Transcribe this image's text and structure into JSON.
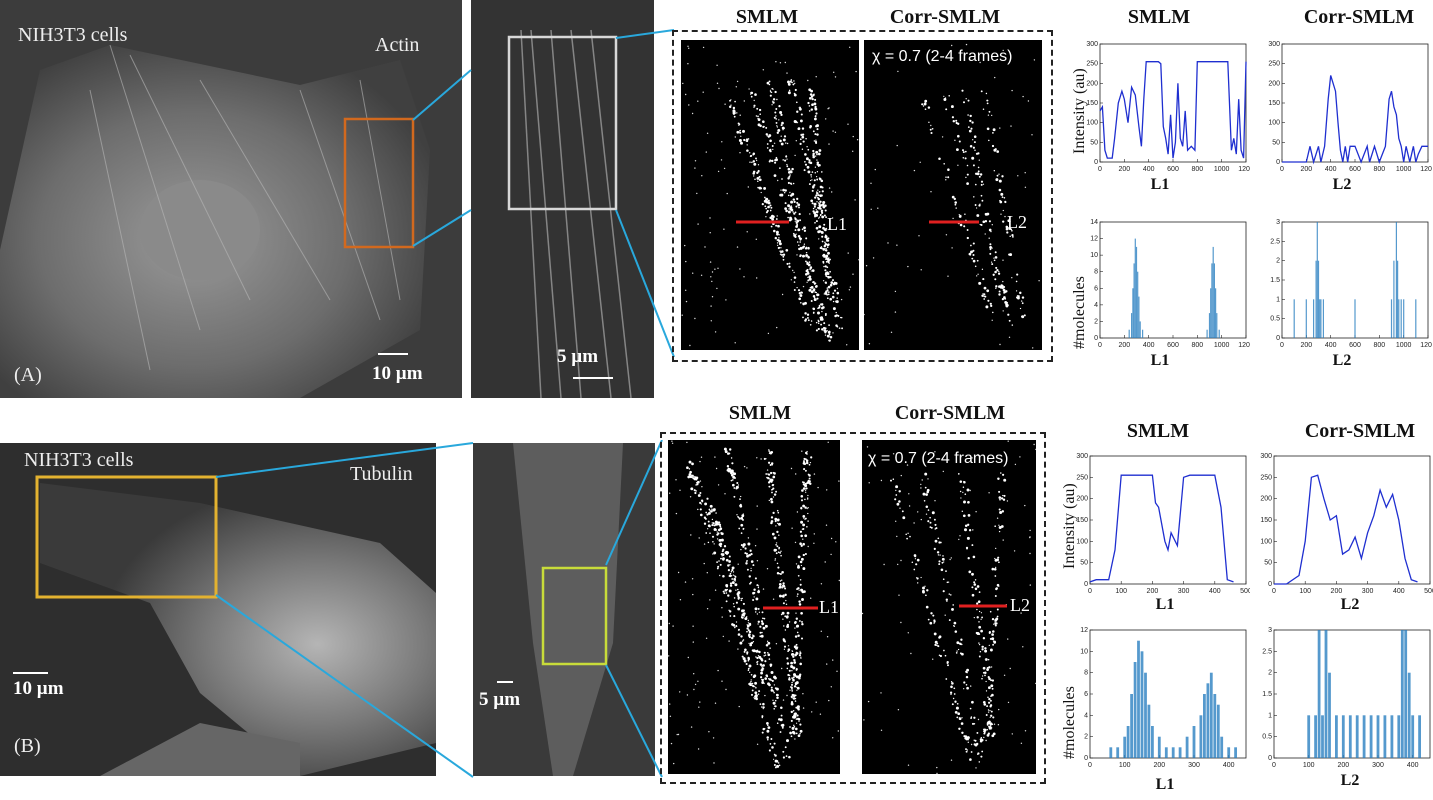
{
  "panel_a": {
    "cells_label": "NIH3T3 cells",
    "protein_label": "Actin",
    "scale_full": "10 µm",
    "scale_zoom": "5 µm",
    "panel_letter": "(A)",
    "smlm_header": "SMLM",
    "corr_header": "Corr-SMLM",
    "chi_text": "χ = 0.7 (2-4 frames)",
    "line1": "L1",
    "line2": "L2",
    "plot_smlm_header": "SMLM",
    "plot_corr_header": "Corr-SMLM",
    "intensity_ylabel": "Intensity (au)",
    "molecules_ylabel": "#molecules",
    "plot_xlabel_1": "L1",
    "plot_xlabel_2": "L2",
    "plot_xlabel_3": "L1",
    "plot_xlabel_4": "L2"
  },
  "panel_b": {
    "cells_label": "NIH3T3 cells",
    "protein_label": "Tubulin",
    "scale_full": "10 µm",
    "scale_zoom": "5 µm",
    "panel_letter": "(B)",
    "smlm_header": "SMLM",
    "corr_header": "Corr-SMLM",
    "chi_text": "χ = 0.7 (2-4 frames)",
    "line1": "L1",
    "line2": "L2",
    "plot_smlm_header": "SMLM",
    "plot_corr_header": "Corr-SMLM",
    "intensity_ylabel": "Intensity (au)",
    "molecules_ylabel": "#molecules",
    "plot_xlabel_1": "L1",
    "plot_xlabel_2": "L2",
    "plot_xlabel_3": "L1",
    "plot_xlabel_4": "L2"
  },
  "chart_data": [
    {
      "id": "A-intensity-L1",
      "type": "line",
      "xlim": [
        0,
        1200
      ],
      "ylim": [
        0,
        300
      ],
      "xticks": [
        0,
        200,
        400,
        600,
        800,
        1000,
        1200
      ],
      "yticks": [
        0,
        50,
        100,
        150,
        200,
        250,
        300
      ],
      "x": [
        0,
        20,
        40,
        60,
        80,
        100,
        120,
        150,
        180,
        200,
        230,
        260,
        290,
        320,
        340,
        360,
        380,
        400,
        420,
        450,
        480,
        500,
        520,
        540,
        560,
        580,
        600,
        620,
        640,
        660,
        680,
        700,
        720,
        750,
        780,
        800,
        820,
        850,
        880,
        900,
        950,
        1000,
        1050,
        1080,
        1100,
        1120,
        1140,
        1160,
        1180,
        1200
      ],
      "y": [
        130,
        140,
        30,
        10,
        10,
        10,
        60,
        150,
        180,
        160,
        100,
        190,
        170,
        90,
        40,
        160,
        255,
        255,
        255,
        255,
        255,
        250,
        90,
        60,
        20,
        120,
        10,
        50,
        200,
        60,
        40,
        130,
        30,
        40,
        30,
        255,
        255,
        255,
        255,
        255,
        255,
        255,
        255,
        30,
        60,
        20,
        160,
        30,
        10,
        255
      ]
    },
    {
      "id": "A-intensity-L2",
      "type": "line",
      "xlim": [
        0,
        1200
      ],
      "ylim": [
        0,
        300
      ],
      "xticks": [
        0,
        200,
        400,
        600,
        800,
        1000,
        1200
      ],
      "yticks": [
        0,
        50,
        100,
        150,
        200,
        250,
        300
      ],
      "x": [
        0,
        100,
        180,
        200,
        230,
        260,
        300,
        320,
        350,
        380,
        400,
        420,
        440,
        460,
        480,
        500,
        520,
        540,
        560,
        600,
        650,
        700,
        720,
        760,
        800,
        850,
        880,
        900,
        920,
        940,
        960,
        980,
        1000,
        1020,
        1050,
        1080,
        1100,
        1120,
        1150,
        1200
      ],
      "y": [
        0,
        0,
        0,
        0,
        40,
        0,
        40,
        0,
        40,
        160,
        220,
        200,
        180,
        100,
        30,
        0,
        40,
        0,
        40,
        40,
        0,
        40,
        0,
        40,
        0,
        40,
        160,
        180,
        140,
        120,
        60,
        40,
        0,
        40,
        0,
        40,
        0,
        20,
        40,
        40
      ]
    },
    {
      "id": "A-molecules-L1",
      "type": "bar",
      "xlim": [
        0,
        1200
      ],
      "ylim": [
        0,
        14
      ],
      "xticks": [
        0,
        200,
        400,
        600,
        800,
        1000,
        1200
      ],
      "yticks": [
        0,
        2,
        4,
        6,
        8,
        10,
        12,
        14
      ],
      "x": [
        240,
        260,
        270,
        280,
        290,
        300,
        310,
        320,
        330,
        350,
        880,
        900,
        910,
        920,
        930,
        940,
        950,
        960,
        980
      ],
      "y": [
        1,
        3,
        6,
        9,
        12,
        11,
        8,
        5,
        2,
        1,
        1,
        3,
        6,
        9,
        11,
        9,
        6,
        3,
        1
      ]
    },
    {
      "id": "A-molecules-L2",
      "type": "bar",
      "xlim": [
        0,
        1200
      ],
      "ylim": [
        0,
        3
      ],
      "xticks": [
        0,
        200,
        400,
        600,
        800,
        1000,
        1200
      ],
      "yticks": [
        0,
        0.5,
        1,
        1.5,
        2,
        2.5,
        3
      ],
      "x": [
        100,
        200,
        260,
        280,
        290,
        300,
        310,
        320,
        340,
        600,
        900,
        920,
        940,
        950,
        960,
        980,
        1000,
        1100
      ],
      "y": [
        1,
        1,
        1,
        2,
        3,
        2,
        1,
        1,
        1,
        1,
        1,
        2,
        3,
        2,
        1,
        1,
        1,
        1
      ]
    },
    {
      "id": "B-intensity-L1",
      "type": "line",
      "xlim": [
        0,
        500
      ],
      "ylim": [
        0,
        300
      ],
      "xticks": [
        0,
        100,
        200,
        300,
        400,
        500
      ],
      "yticks": [
        0,
        50,
        100,
        150,
        200,
        250,
        300
      ],
      "x": [
        0,
        20,
        40,
        60,
        80,
        100,
        120,
        160,
        200,
        210,
        220,
        240,
        250,
        260,
        280,
        300,
        320,
        360,
        400,
        420,
        440,
        460
      ],
      "y": [
        5,
        10,
        10,
        10,
        80,
        255,
        255,
        255,
        255,
        190,
        180,
        100,
        80,
        120,
        90,
        250,
        255,
        255,
        255,
        180,
        10,
        5
      ]
    },
    {
      "id": "B-intensity-L2",
      "type": "line",
      "xlim": [
        0,
        500
      ],
      "ylim": [
        0,
        300
      ],
      "xticks": [
        0,
        100,
        200,
        300,
        400,
        500
      ],
      "yticks": [
        0,
        50,
        100,
        150,
        200,
        250,
        300
      ],
      "x": [
        0,
        40,
        80,
        100,
        120,
        140,
        160,
        180,
        200,
        220,
        240,
        260,
        280,
        300,
        320,
        340,
        360,
        380,
        400,
        420,
        440,
        460
      ],
      "y": [
        0,
        0,
        20,
        100,
        250,
        255,
        200,
        150,
        160,
        70,
        80,
        110,
        60,
        120,
        160,
        220,
        180,
        210,
        150,
        60,
        10,
        5
      ]
    },
    {
      "id": "B-molecules-L1",
      "type": "bar",
      "xlim": [
        0,
        450
      ],
      "ylim": [
        0,
        12
      ],
      "xticks": [
        0,
        100,
        200,
        300,
        400
      ],
      "yticks": [
        0,
        2,
        4,
        6,
        8,
        10,
        12
      ],
      "x": [
        60,
        80,
        100,
        110,
        120,
        130,
        140,
        150,
        160,
        170,
        180,
        200,
        220,
        240,
        260,
        280,
        300,
        320,
        330,
        340,
        350,
        360,
        370,
        380,
        400,
        420
      ],
      "y": [
        1,
        1,
        2,
        3,
        6,
        9,
        11,
        10,
        8,
        5,
        3,
        2,
        1,
        1,
        1,
        2,
        3,
        4,
        6,
        7,
        8,
        6,
        5,
        2,
        1,
        1
      ]
    },
    {
      "id": "B-molecules-L2",
      "type": "bar",
      "xlim": [
        0,
        450
      ],
      "ylim": [
        0,
        3
      ],
      "xticks": [
        0,
        100,
        200,
        300,
        400
      ],
      "yticks": [
        0,
        0.5,
        1,
        1.5,
        2,
        2.5,
        3
      ],
      "x": [
        100,
        120,
        130,
        140,
        150,
        160,
        180,
        200,
        220,
        240,
        260,
        280,
        300,
        320,
        340,
        360,
        370,
        380,
        390,
        400,
        420
      ],
      "y": [
        1,
        1,
        3,
        1,
        3,
        2,
        1,
        1,
        1,
        1,
        1,
        1,
        1,
        1,
        1,
        1,
        3,
        3,
        2,
        1,
        1
      ]
    }
  ]
}
